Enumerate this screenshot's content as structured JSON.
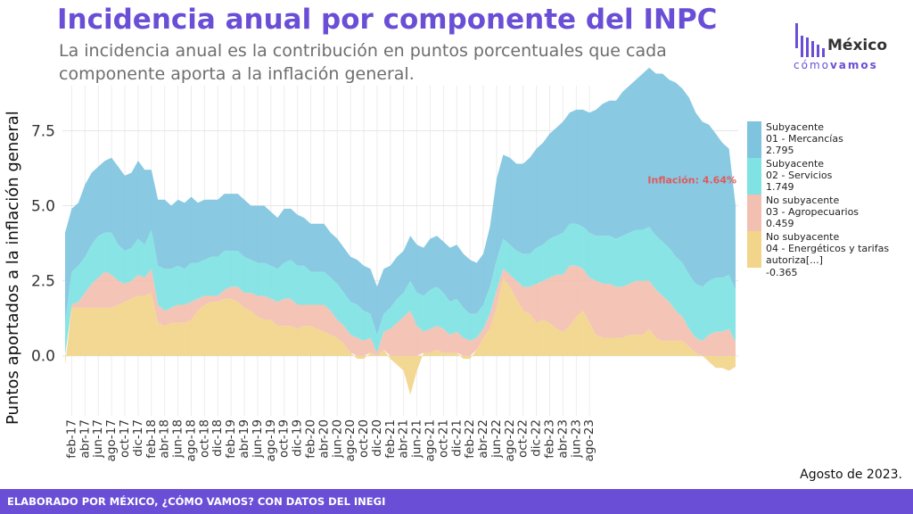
{
  "title": "Incidencia anual por componente del INPC",
  "subtitle": "La incidencia anual es la contribución en puntos porcentuales que cada componente aporta a la inflación general.",
  "logo": {
    "word": "México",
    "sub_a": "cómo",
    "sub_b": "vamos"
  },
  "note": "Agosto de 2023.",
  "footer": "ELABORADO POR MÉXICO, ¿CÓMO VAMOS? CON DATOS DEL INEGI",
  "colors": {
    "accent": "#6a4fd6"
  },
  "chart_data": {
    "type": "area",
    "stacked": true,
    "ylabel": "Puntos aportados a la inflación general",
    "ylim": [
      -2,
      9
    ],
    "yticks": [
      0.0,
      2.5,
      5.0,
      7.5
    ],
    "ytick_labels": [
      "0.0",
      "2.5",
      "5.0",
      "7.5"
    ],
    "xtick_labels": [
      "feb-17",
      "abr-17",
      "jun-17",
      "ago-17",
      "oct-17",
      "dic-17",
      "feb-18",
      "abr-18",
      "jun-18",
      "ago-18",
      "oct-18",
      "dic-18",
      "feb-19",
      "abr-19",
      "jun-19",
      "ago-19",
      "oct-19",
      "dic-19",
      "feb-20",
      "abr-20",
      "jun-20",
      "ago-20",
      "oct-20",
      "dic-20",
      "feb-21",
      "abr-21",
      "jun-21",
      "ago-21",
      "oct-21",
      "dic-21",
      "feb-22",
      "abr-22",
      "jun-22",
      "ago-22",
      "oct-22",
      "dic-22",
      "feb-23",
      "abr-23",
      "jun-23",
      "ago-23"
    ],
    "x_start": "ene-17",
    "x_end": "ago-23",
    "annotation": "Inflación: 4.64%",
    "series": [
      {
        "name": "No subyacente\n04 - Energéticos y tarifas autoriza[...]",
        "legend_value": "-0.365",
        "color": "#f2d58a",
        "values": [
          -0.3,
          1.6,
          1.6,
          1.6,
          1.6,
          1.6,
          1.6,
          1.6,
          1.7,
          1.8,
          1.9,
          2.0,
          2.0,
          2.1,
          1.1,
          1.0,
          1.1,
          1.1,
          1.1,
          1.2,
          1.5,
          1.7,
          1.8,
          1.8,
          1.9,
          1.9,
          1.8,
          1.6,
          1.5,
          1.3,
          1.2,
          1.2,
          1.0,
          1.0,
          1.0,
          0.9,
          1.0,
          1.0,
          0.9,
          0.8,
          0.7,
          0.6,
          0.4,
          0.1,
          -0.1,
          -0.1,
          0.1,
          0.0,
          0.2,
          -0.1,
          -0.3,
          -0.5,
          -1.3,
          -0.5,
          0.1,
          0.1,
          0.2,
          0.1,
          0.1,
          0.1,
          -0.1,
          -0.1,
          0.2,
          0.6,
          0.9,
          1.6,
          2.6,
          2.3,
          1.9,
          1.5,
          1.4,
          1.1,
          1.2,
          1.1,
          0.9,
          0.8,
          1.0,
          1.3,
          1.5,
          1.1,
          0.7,
          0.6,
          0.6,
          0.6,
          0.6,
          0.7,
          0.7,
          0.7,
          0.9,
          0.6,
          0.5,
          0.5,
          0.5,
          0.5,
          0.3,
          0.1,
          0.0,
          -0.2,
          -0.4,
          -0.4,
          -0.5,
          -0.365
        ]
      },
      {
        "name": "No subyacente\n03 - Agropecuarios",
        "legend_value": "0.459",
        "color": "#f3bfb1",
        "values": [
          0.0,
          0.1,
          0.2,
          0.5,
          0.8,
          1.0,
          1.2,
          1.1,
          0.8,
          0.6,
          0.6,
          0.7,
          0.6,
          0.8,
          0.6,
          0.5,
          0.5,
          0.6,
          0.6,
          0.6,
          0.4,
          0.3,
          0.2,
          0.2,
          0.3,
          0.4,
          0.5,
          0.5,
          0.6,
          0.7,
          0.8,
          0.7,
          0.8,
          0.9,
          0.9,
          0.8,
          0.7,
          0.7,
          0.8,
          0.9,
          0.8,
          0.6,
          0.6,
          0.6,
          0.6,
          0.5,
          0.5,
          0.1,
          0.6,
          0.9,
          1.1,
          1.3,
          1.5,
          1.0,
          0.7,
          0.8,
          0.8,
          0.8,
          0.6,
          0.7,
          0.6,
          0.5,
          0.4,
          0.3,
          0.5,
          0.6,
          0.3,
          0.4,
          0.6,
          0.8,
          0.9,
          1.3,
          1.3,
          1.5,
          1.8,
          1.9,
          2.0,
          1.7,
          1.4,
          1.5,
          1.8,
          1.8,
          1.8,
          1.7,
          1.7,
          1.7,
          1.8,
          1.8,
          1.6,
          1.6,
          1.5,
          1.3,
          1.0,
          0.8,
          0.6,
          0.5,
          0.5,
          0.7,
          0.8,
          0.8,
          0.9,
          0.459
        ]
      },
      {
        "name": "Subyacente\n02 - Servicios",
        "legend_value": "1.749",
        "color": "#7fe3e3",
        "values": [
          1.1,
          1.1,
          1.2,
          1.2,
          1.3,
          1.4,
          1.3,
          1.4,
          1.2,
          1.1,
          1.1,
          1.2,
          1.1,
          1.3,
          1.3,
          1.4,
          1.3,
          1.3,
          1.2,
          1.3,
          1.2,
          1.2,
          1.3,
          1.3,
          1.3,
          1.2,
          1.2,
          1.2,
          1.1,
          1.1,
          1.1,
          1.1,
          1.1,
          1.2,
          1.3,
          1.3,
          1.3,
          1.1,
          1.1,
          1.1,
          1.1,
          1.2,
          1.1,
          1.1,
          1.1,
          1.0,
          0.8,
          0.6,
          0.6,
          0.7,
          0.8,
          0.8,
          1.0,
          1.1,
          1.2,
          1.3,
          1.3,
          1.2,
          1.1,
          1.1,
          1.0,
          0.9,
          0.8,
          0.8,
          0.9,
          1.0,
          1.0,
          1.0,
          1.0,
          1.1,
          1.1,
          1.2,
          1.2,
          1.3,
          1.3,
          1.4,
          1.4,
          1.4,
          1.4,
          1.5,
          1.5,
          1.6,
          1.6,
          1.6,
          1.7,
          1.7,
          1.7,
          1.7,
          1.8,
          1.8,
          1.8,
          1.8,
          1.8,
          1.8,
          1.8,
          1.8,
          1.8,
          1.8,
          1.8,
          1.8,
          1.8,
          1.749
        ]
      },
      {
        "name": "Subyacente\n01 - Mercancías",
        "legend_value": "2.795",
        "color": "#7fc4df",
        "values": [
          3.0,
          2.1,
          2.1,
          2.4,
          2.4,
          2.3,
          2.4,
          2.5,
          2.6,
          2.5,
          2.5,
          2.6,
          2.5,
          2.0,
          2.2,
          2.3,
          2.1,
          2.2,
          2.2,
          2.2,
          2.0,
          2.0,
          1.9,
          1.9,
          1.9,
          1.9,
          1.9,
          1.9,
          1.8,
          1.9,
          1.9,
          1.8,
          1.7,
          1.8,
          1.7,
          1.7,
          1.6,
          1.6,
          1.6,
          1.6,
          1.5,
          1.5,
          1.5,
          1.5,
          1.5,
          1.5,
          1.5,
          1.6,
          1.5,
          1.4,
          1.4,
          1.4,
          1.5,
          1.6,
          1.6,
          1.7,
          1.7,
          1.7,
          1.8,
          1.8,
          1.8,
          1.8,
          1.7,
          1.7,
          2.0,
          2.7,
          2.8,
          2.9,
          2.9,
          3.0,
          3.2,
          3.3,
          3.4,
          3.5,
          3.6,
          3.7,
          3.7,
          3.8,
          3.9,
          4.0,
          4.2,
          4.4,
          4.5,
          4.6,
          4.8,
          4.9,
          5.0,
          5.2,
          5.3,
          5.4,
          5.6,
          5.6,
          5.8,
          5.8,
          5.9,
          5.7,
          5.5,
          5.2,
          4.8,
          4.5,
          4.2,
          2.795
        ]
      }
    ]
  }
}
